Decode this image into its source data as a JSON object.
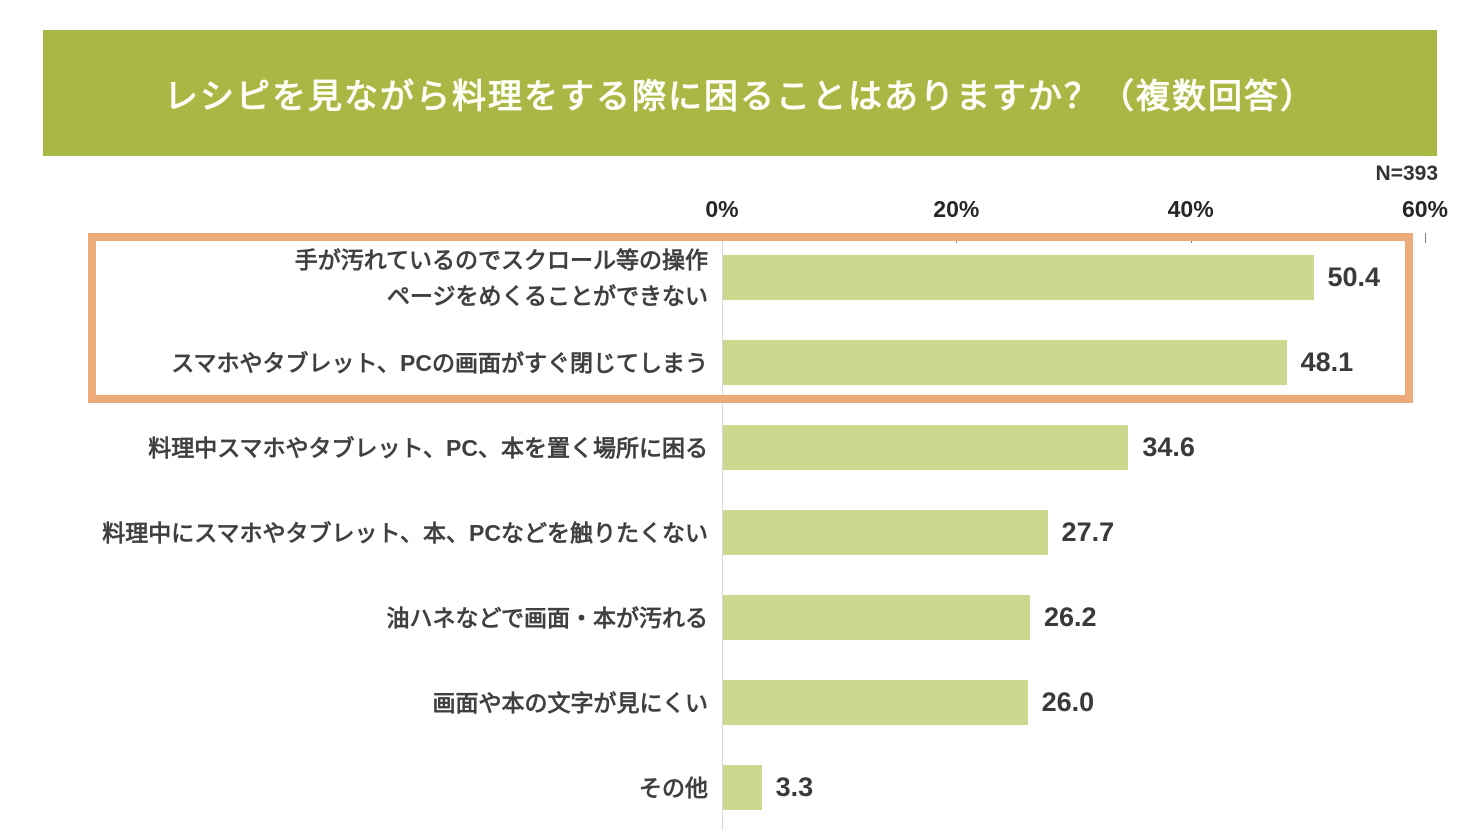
{
  "chart_data": {
    "type": "bar",
    "orientation": "horizontal",
    "title": "レシピを見ながら料理をする際に困ることはありますか？（複数回答）",
    "sample_label": "N=393",
    "categories": [
      "手が汚れているのでスクロール等の操作\nページをめくることができない",
      "スマホやタブレット、PCの画面がすぐ閉じてしまう",
      "料理中スマホやタブレット、PC、本を置く場所に困る",
      "料理中にスマホやタブレット、本、PCなどを触りたくない",
      "油ハネなどで画面・本が汚れる",
      "画面や本の文字が見にくい",
      "その他"
    ],
    "values": [
      50.4,
      48.1,
      34.6,
      27.7,
      26.2,
      26.0,
      3.3
    ],
    "value_labels": [
      "50.4",
      "48.1",
      "34.6",
      "27.7",
      "26.2",
      "26.0",
      "3.3"
    ],
    "xlabel": "",
    "ylabel": "",
    "xlim": [
      0,
      60
    ],
    "x_tick_labels": [
      "0%",
      "20%",
      "40%",
      "60%"
    ],
    "x_tick_values": [
      0,
      20,
      40,
      60
    ],
    "grid": false,
    "legend": null,
    "highlighted_rows": [
      0,
      1
    ],
    "colors": {
      "bar": "#cdd88e",
      "banner": "#a9b845",
      "highlight_border": "#ecab79",
      "axis_line": "#d9d9d9",
      "tick_mark": "#808080",
      "label_text": "#404040",
      "value_text": "#3a3a3a",
      "title_text": "#fefef6"
    }
  }
}
